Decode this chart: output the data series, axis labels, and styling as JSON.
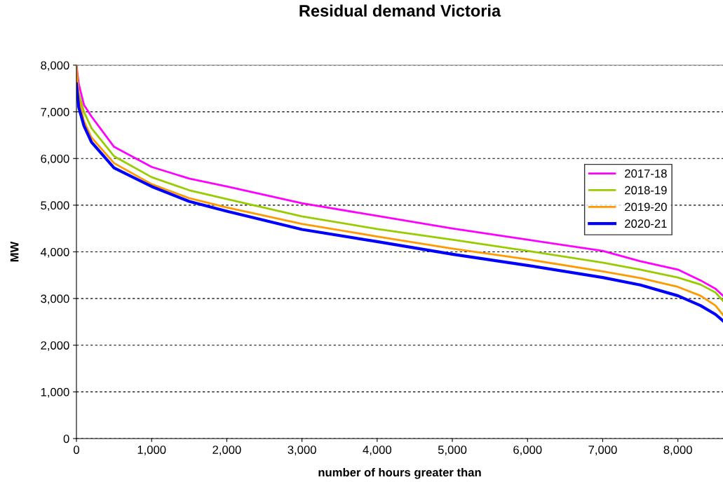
{
  "chart_data": {
    "type": "line",
    "title": "Residual demand Victoria",
    "xlabel": "number of hours greater than",
    "ylabel": "MW",
    "x": [
      0,
      30,
      100,
      200,
      500,
      1000,
      1500,
      2000,
      3000,
      4000,
      5000,
      6000,
      7000,
      7500,
      8000,
      8300,
      8500,
      8600
    ],
    "series": [
      {
        "name": "2017-18",
        "color": "#ff00ff",
        "values": [
          8000,
          7600,
          7150,
          6900,
          6250,
          5820,
          5570,
          5400,
          5040,
          4770,
          4500,
          4260,
          4020,
          3800,
          3620,
          3390,
          3210,
          3060
        ]
      },
      {
        "name": "2018-19",
        "color": "#99cc00",
        "values": [
          7900,
          7400,
          7000,
          6650,
          6050,
          5600,
          5320,
          5130,
          4760,
          4490,
          4260,
          4020,
          3770,
          3620,
          3450,
          3300,
          3130,
          2950
        ]
      },
      {
        "name": "2019-20",
        "color": "#ff9900",
        "values": [
          8000,
          7300,
          6800,
          6450,
          5900,
          5450,
          5150,
          4950,
          4600,
          4330,
          4070,
          3840,
          3580,
          3440,
          3250,
          3060,
          2850,
          2650
        ]
      },
      {
        "name": "2020-21",
        "color": "#0000ff",
        "values": [
          7600,
          7100,
          6700,
          6350,
          5800,
          5400,
          5080,
          4870,
          4480,
          4220,
          3950,
          3710,
          3450,
          3290,
          3060,
          2850,
          2660,
          2520
        ]
      }
    ],
    "xlim": [
      0,
      8600
    ],
    "xticks": [
      {
        "value": 0,
        "label": "0"
      },
      {
        "value": 1000,
        "label": "1,000"
      },
      {
        "value": 2000,
        "label": "2,000"
      },
      {
        "value": 3000,
        "label": "3,000"
      },
      {
        "value": 4000,
        "label": "4,000"
      },
      {
        "value": 5000,
        "label": "5,000"
      },
      {
        "value": 6000,
        "label": "6,000"
      },
      {
        "value": 7000,
        "label": "7,000"
      },
      {
        "value": 8000,
        "label": "8,000"
      }
    ],
    "ylim": [
      0,
      8000
    ],
    "yticks": [
      {
        "value": 0,
        "label": "0"
      },
      {
        "value": 1000,
        "label": "1,000"
      },
      {
        "value": 2000,
        "label": "2,000"
      },
      {
        "value": 3000,
        "label": "3,000"
      },
      {
        "value": 4000,
        "label": "4,000"
      },
      {
        "value": 5000,
        "label": "5,000"
      },
      {
        "value": 6000,
        "label": "6,000"
      },
      {
        "value": 7000,
        "label": "7,000"
      },
      {
        "value": 8000,
        "label": "8,000"
      }
    ],
    "grid": "y",
    "legend": "center right",
    "marker": "none",
    "line_style": "solid"
  }
}
